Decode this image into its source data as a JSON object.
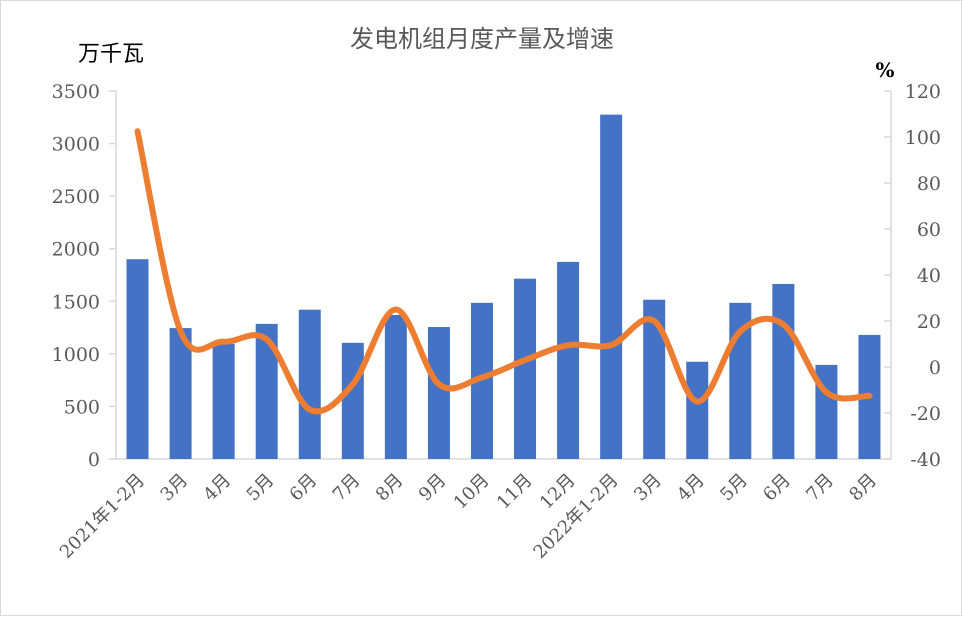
{
  "chart_data": {
    "type": "bar+line",
    "title": "发电机组月度产量及增速",
    "ylabel_left": "万千瓦",
    "ylabel_right": "%",
    "categories": [
      "2021年1-2月",
      "3月",
      "4月",
      "5月",
      "6月",
      "7月",
      "8月",
      "9月",
      "10月",
      "11月",
      "12月",
      "2022年1-2月",
      "3月",
      "4月",
      "5月",
      "6月",
      "7月",
      "8月"
    ],
    "left_axis": {
      "min": 0,
      "max": 3500,
      "ticks": [
        0,
        500,
        1000,
        1500,
        2000,
        2500,
        3000,
        3500
      ]
    },
    "right_axis": {
      "min": -40,
      "max": 120,
      "ticks": [
        -40,
        -20,
        0,
        20,
        40,
        60,
        80,
        100,
        120
      ]
    },
    "grid": false,
    "series": [
      {
        "kind": "bar",
        "axis": "left",
        "color": "#4472C4",
        "values": [
          1900,
          1245,
          1095,
          1285,
          1420,
          1105,
          1370,
          1255,
          1485,
          1715,
          1875,
          3275,
          1515,
          925,
          1485,
          1665,
          895,
          1180
        ]
      },
      {
        "kind": "line",
        "axis": "right",
        "color": "#ED7D31",
        "smooth": true,
        "values": [
          102.5,
          15.5,
          11,
          12,
          -18.5,
          -7.5,
          25,
          -7.5,
          -4.5,
          3,
          9.5,
          9.5,
          20,
          -15,
          15.5,
          18.5,
          -11,
          -12.5
        ]
      }
    ]
  }
}
